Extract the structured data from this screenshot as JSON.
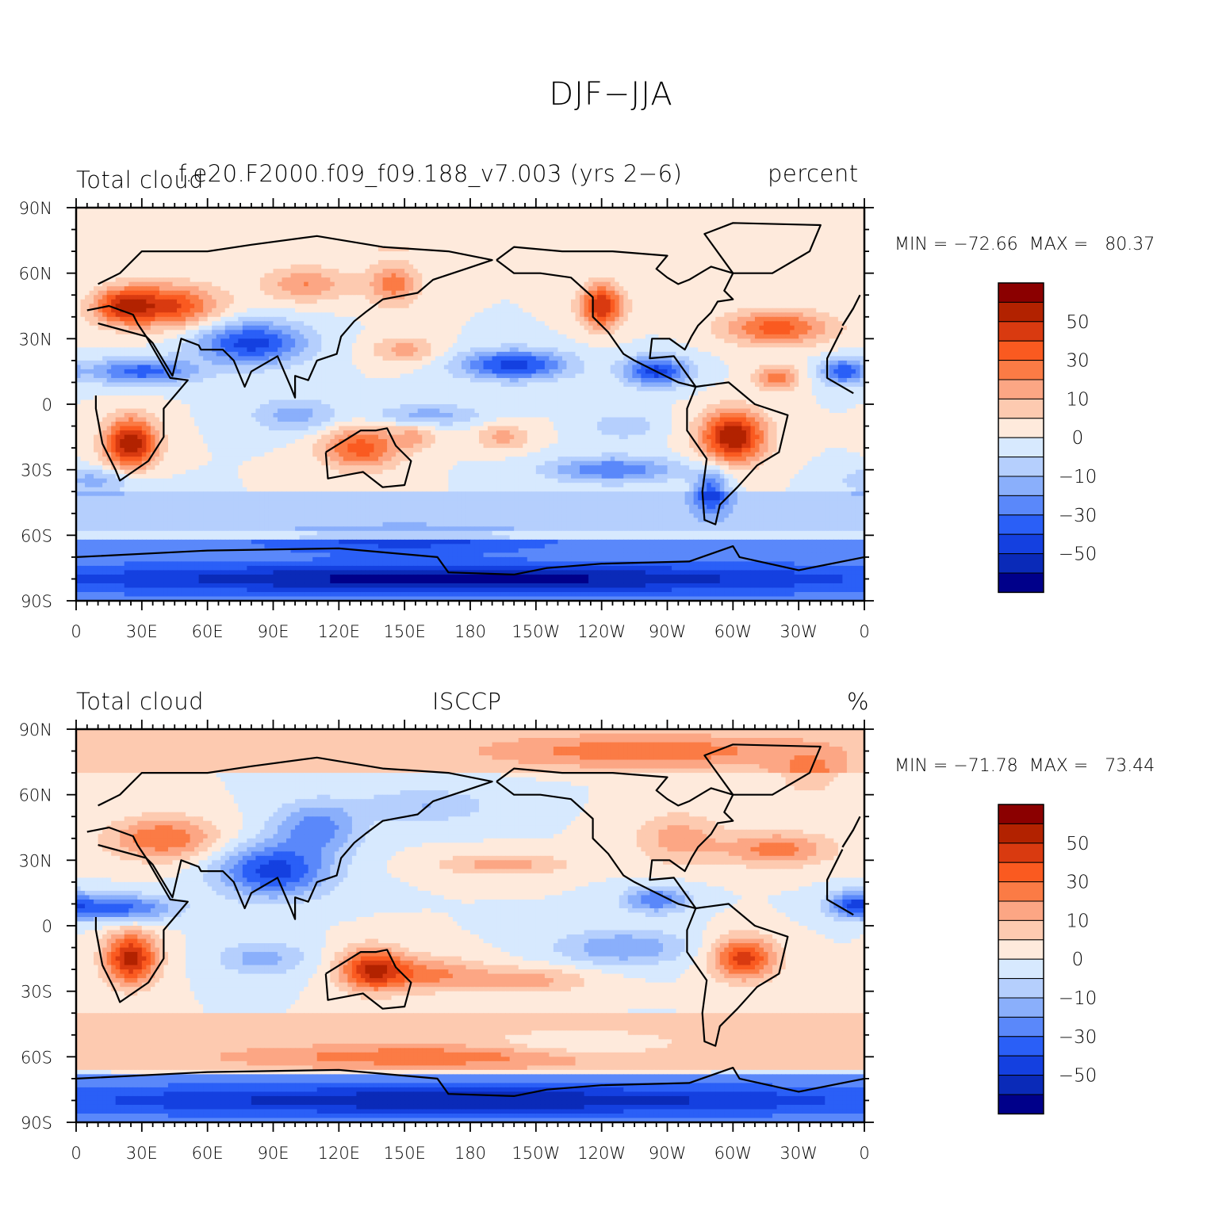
{
  "title": "DJF−JJA",
  "panels": [
    {
      "left_label": "Total cloud",
      "center_label": "f.e20.F2000.f09_f09.188_v7.003 (yrs 2−6)",
      "right_label": "percent",
      "stats": "MIN = −72.66  MAX =   80.37"
    },
    {
      "left_label": "Total cloud",
      "center_label": "ISCCP",
      "right_label": "%",
      "stats": "MIN = −71.78  MAX =   73.44"
    }
  ],
  "axes": {
    "x_ticks": [
      "0",
      "30E",
      "60E",
      "90E",
      "120E",
      "150E",
      "180",
      "150W",
      "120W",
      "90W",
      "60W",
      "30W",
      "0"
    ],
    "y_ticks": [
      "90N",
      "60N",
      "30N",
      "0",
      "30S",
      "60S",
      "90S"
    ]
  },
  "colorbar": {
    "labels": [
      "50",
      "30",
      "10",
      "0",
      "−10",
      "−30",
      "−50"
    ],
    "colors": [
      "#8b0000",
      "#b22200",
      "#d93a10",
      "#fa5a20",
      "#fb7b45",
      "#fca684",
      "#fdcab0",
      "#feeadc",
      "#d7e9fe",
      "#b5cffd",
      "#8aaffb",
      "#5a88fa",
      "#2a5ff7",
      "#1440e0",
      "#0a2ab8",
      "#00008a"
    ]
  },
  "icons": [
    "coastline-map"
  ]
}
